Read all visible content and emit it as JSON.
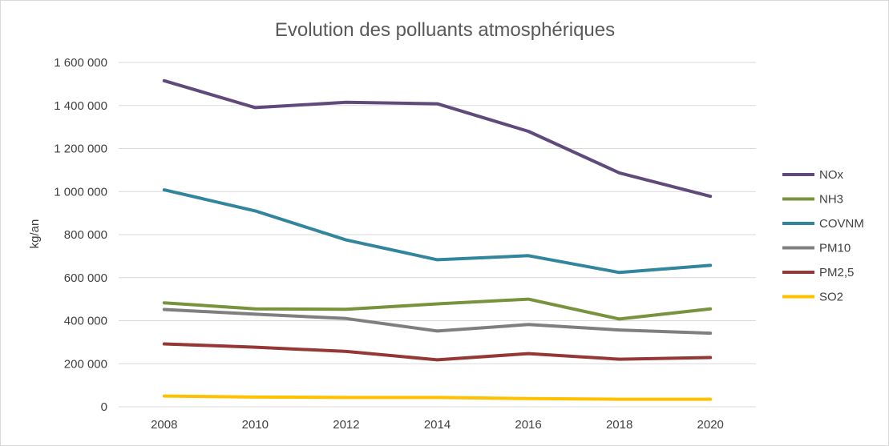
{
  "chart_data": {
    "type": "line",
    "title": "Evolution des polluants atmosphériques",
    "xlabel": "",
    "ylabel": "kg/an",
    "categories": [
      "2008",
      "2010",
      "2012",
      "2014",
      "2016",
      "2018",
      "2020"
    ],
    "ylim": [
      0,
      1600000
    ],
    "yticks": [
      0,
      200000,
      400000,
      600000,
      800000,
      1000000,
      1200000,
      1400000,
      1600000
    ],
    "ytick_labels": [
      "0",
      "200 000",
      "400 000",
      "600 000",
      "800 000",
      "1 000 000",
      "1 200 000",
      "1 400 000",
      "1 600 000"
    ],
    "grid": true,
    "legend_position": "right",
    "series": [
      {
        "name": "NOx",
        "color": "#604A7B",
        "values": [
          1515000,
          1390000,
          1415000,
          1408000,
          1280000,
          1087000,
          978000
        ]
      },
      {
        "name": "NH3",
        "color": "#77933C",
        "values": [
          483000,
          455000,
          453000,
          478000,
          500000,
          408000,
          455000
        ]
      },
      {
        "name": "COVNM",
        "color": "#31859C",
        "values": [
          1008000,
          910000,
          775000,
          683000,
          702000,
          624000,
          657000
        ]
      },
      {
        "name": "PM10",
        "color": "#7F7F7F",
        "values": [
          452000,
          430000,
          410000,
          352000,
          382000,
          357000,
          342000
        ]
      },
      {
        "name": "PM2,5",
        "color": "#953735",
        "values": [
          292000,
          277000,
          257000,
          218000,
          247000,
          221000,
          229000
        ]
      },
      {
        "name": "SO2",
        "color": "#FFC000",
        "values": [
          50000,
          45000,
          43000,
          43000,
          38000,
          35000,
          35000
        ]
      }
    ]
  }
}
